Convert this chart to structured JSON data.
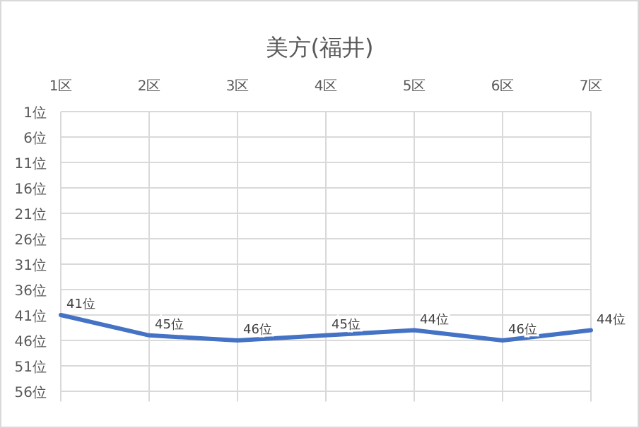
{
  "chart_data": {
    "type": "line",
    "title": "美方(福井)",
    "categories": [
      "1区",
      "2区",
      "3区",
      "4区",
      "5区",
      "6区",
      "7区"
    ],
    "series": [
      {
        "color": "#4472c4",
        "values": [
          41,
          45,
          46,
          45,
          44,
          46,
          44
        ],
        "value_labels": [
          "41位",
          "45位",
          "46位",
          "45位",
          "44位",
          "46位",
          "44位"
        ]
      }
    ],
    "ylim": [
      58,
      1
    ],
    "yticks": [
      {
        "value": 1,
        "label": "1位"
      },
      {
        "value": 6,
        "label": "6位"
      },
      {
        "value": 11,
        "label": "11位"
      },
      {
        "value": 16,
        "label": "16位"
      },
      {
        "value": 21,
        "label": "21位"
      },
      {
        "value": 26,
        "label": "26位"
      },
      {
        "value": 31,
        "label": "31位"
      },
      {
        "value": 36,
        "label": "36位"
      },
      {
        "value": 41,
        "label": "41位"
      },
      {
        "value": 46,
        "label": "46位"
      },
      {
        "value": 51,
        "label": "51位"
      },
      {
        "value": 56,
        "label": "56位"
      }
    ],
    "grid": true,
    "marker": "none",
    "line_style": "solid"
  }
}
